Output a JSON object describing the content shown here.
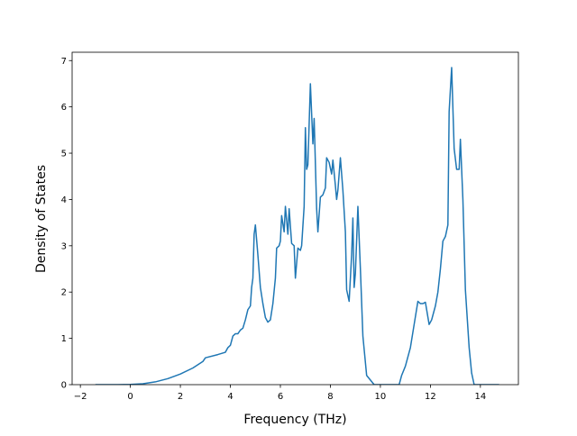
{
  "chart_data": {
    "type": "line",
    "xlabel": "Frequency (THz)",
    "ylabel": "Density of States",
    "x": [
      -1.4,
      -0.5,
      0,
      0.5,
      1,
      1.5,
      2,
      2.5,
      2.9,
      3.0,
      3.5,
      3.8,
      3.9,
      4.0,
      4.1,
      4.2,
      4.3,
      4.4,
      4.5,
      4.6,
      4.7,
      4.8,
      4.85,
      4.9,
      4.95,
      5.0,
      5.1,
      5.2,
      5.3,
      5.4,
      5.5,
      5.6,
      5.7,
      5.8,
      5.85,
      5.95,
      6.0,
      6.05,
      6.15,
      6.2,
      6.3,
      6.35,
      6.45,
      6.55,
      6.6,
      6.7,
      6.8,
      6.85,
      6.95,
      7.0,
      7.05,
      7.1,
      7.2,
      7.3,
      7.35,
      7.45,
      7.5,
      7.6,
      7.7,
      7.8,
      7.85,
      7.95,
      8.05,
      8.1,
      8.2,
      8.25,
      8.3,
      8.4,
      8.5,
      8.6,
      8.65,
      8.75,
      8.85,
      8.9,
      8.95,
      9.0,
      9.1,
      9.2,
      9.3,
      9.45,
      9.6,
      9.75,
      10.75,
      10.85,
      11.0,
      11.2,
      11.35,
      11.5,
      11.6,
      11.7,
      11.8,
      11.95,
      12.05,
      12.2,
      12.3,
      12.4,
      12.5,
      12.6,
      12.7,
      12.75,
      12.85,
      12.95,
      13.05,
      13.15,
      13.2,
      13.3,
      13.4,
      13.55,
      13.65,
      13.75,
      14.75
    ],
    "series": [
      {
        "name": "DOS",
        "color": "#1f77b4",
        "values": [
          0,
          0,
          0.005,
          0.02,
          0.06,
          0.13,
          0.23,
          0.36,
          0.5,
          0.58,
          0.65,
          0.7,
          0.8,
          0.85,
          1.05,
          1.1,
          1.1,
          1.18,
          1.22,
          1.4,
          1.62,
          1.7,
          2.1,
          2.3,
          3.25,
          3.45,
          2.8,
          2.1,
          1.75,
          1.45,
          1.35,
          1.4,
          1.75,
          2.3,
          2.95,
          3.0,
          3.1,
          3.65,
          3.3,
          3.85,
          3.25,
          3.8,
          3.05,
          3.0,
          2.3,
          2.95,
          2.9,
          3.0,
          3.85,
          5.55,
          4.65,
          4.75,
          6.5,
          5.2,
          5.75,
          3.8,
          3.3,
          4.05,
          4.1,
          4.25,
          4.9,
          4.8,
          4.55,
          4.85,
          4.3,
          4.0,
          4.2,
          4.9,
          4.2,
          3.3,
          2.05,
          1.8,
          2.8,
          3.6,
          2.1,
          2.4,
          3.85,
          2.5,
          1.05,
          0.2,
          0.1,
          0,
          0,
          0.2,
          0.4,
          0.8,
          1.3,
          1.8,
          1.75,
          1.75,
          1.78,
          1.3,
          1.4,
          1.7,
          2.0,
          2.5,
          3.1,
          3.2,
          3.45,
          5.9,
          6.85,
          5.1,
          4.65,
          4.65,
          5.3,
          4.0,
          2.05,
          0.8,
          0.25,
          0,
          0
        ]
      }
    ],
    "xlim": [
      -2.33,
      15.52
    ],
    "ylim": [
      0,
      7.18
    ],
    "xticks": [
      {
        "value": -2,
        "label": "−2"
      },
      0,
      2,
      4,
      6,
      8,
      10,
      12,
      14
    ],
    "yticks": [
      0,
      1,
      2,
      3,
      4,
      5,
      6,
      7
    ]
  }
}
